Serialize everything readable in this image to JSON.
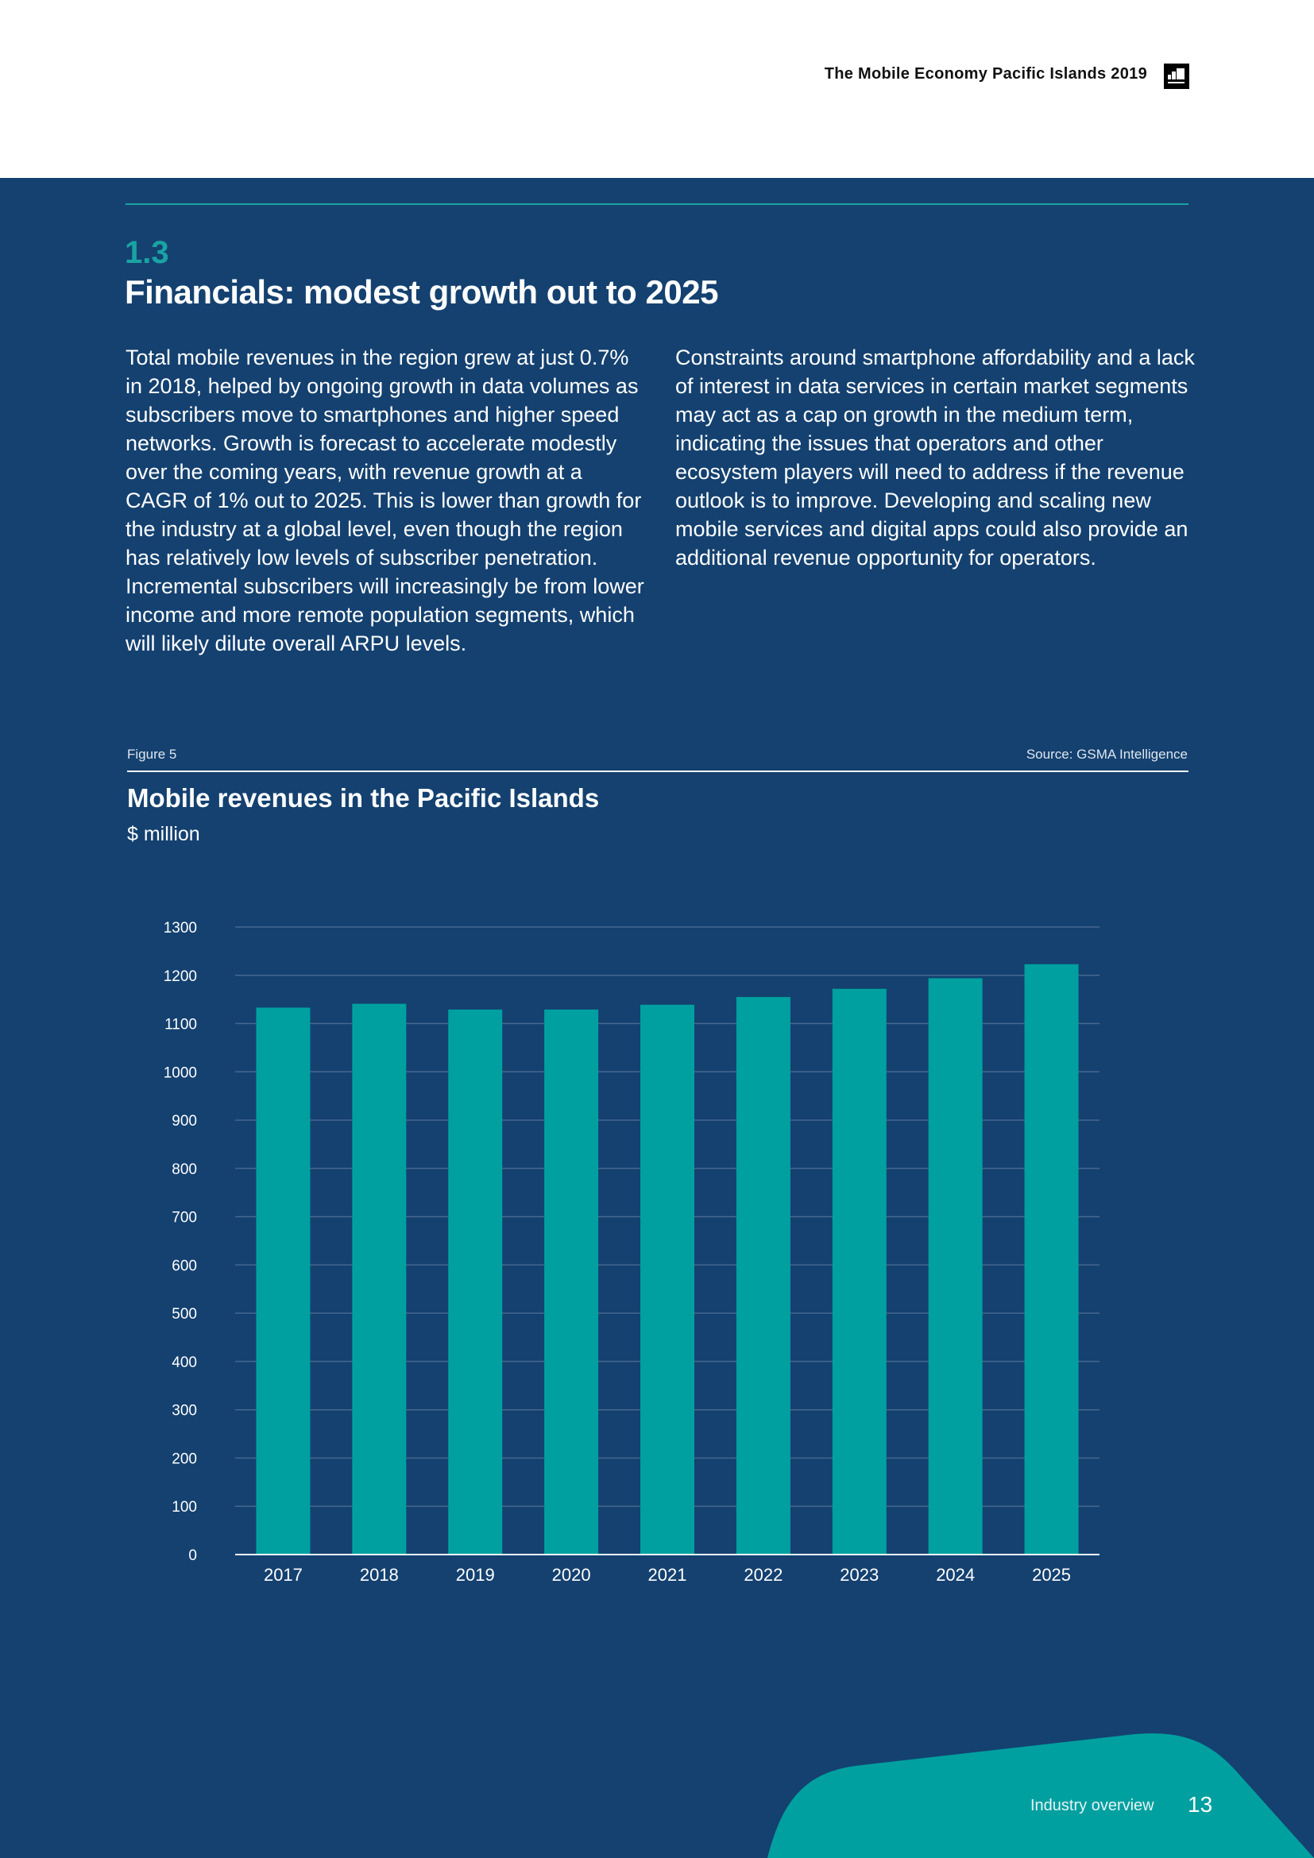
{
  "header": {
    "report_title": "The Mobile Economy Pacific Islands 2019"
  },
  "section": {
    "number": "1.3",
    "title": "Financials: modest growth out to 2025"
  },
  "body": {
    "para_left": "Total mobile revenues in the region grew at just 0.7% in 2018, helped by ongoing growth in data volumes as subscribers move to smartphones and higher speed networks. Growth is forecast to accelerate modestly over the coming years, with revenue growth at a CAGR of 1% out to 2025. This is lower than growth for the industry at a global level, even though the region has relatively low levels of subscriber penetration. Incremental subscribers will increasingly be from lower income and more remote population segments, which will likely dilute overall ARPU levels.",
    "para_right": "Constraints around smartphone affordability and a lack of interest in data services in certain market segments may act as a cap on growth in the medium term, indicating the issues that operators and other ecosystem players will need to address if the revenue outlook is to improve. Developing and scaling new mobile services and digital apps could also provide an additional revenue opportunity for operators."
  },
  "figure": {
    "label": "Figure 5",
    "source": "Source: GSMA Intelligence"
  },
  "chart_data": {
    "type": "bar",
    "title": "Mobile revenues in the Pacific Islands",
    "subtitle": "$ million",
    "categories": [
      "2017",
      "2018",
      "2019",
      "2020",
      "2021",
      "2022",
      "2023",
      "2024",
      "2025"
    ],
    "values": [
      1133,
      1141,
      1129,
      1129,
      1139,
      1155,
      1172,
      1194,
      1223
    ],
    "ylim": [
      0,
      1300
    ],
    "yticks": [
      0,
      100,
      200,
      300,
      400,
      500,
      600,
      700,
      800,
      900,
      1000,
      1100,
      1200,
      1300
    ],
    "xlabel": "",
    "ylabel": "",
    "grid": true,
    "bar_color": "#00a0a0"
  },
  "footer": {
    "section_label": "Industry overview",
    "page_number": "13"
  },
  "colors": {
    "background": "#144170",
    "accent": "#1aa3a3"
  }
}
